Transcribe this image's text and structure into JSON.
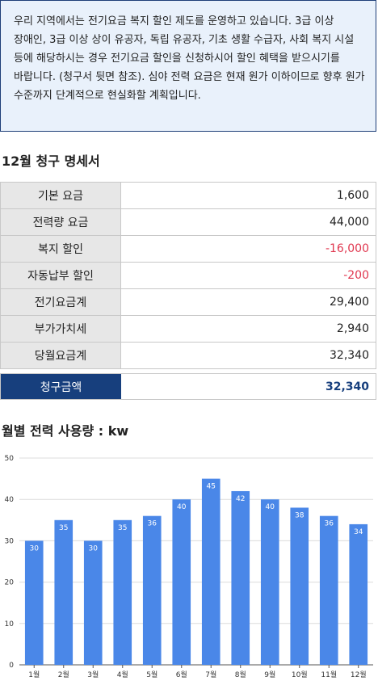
{
  "notice": {
    "text": "우리 지역에서는 전기요금 복지 할인 제도를 운영하고 있습니다. 3급 이상 장애인, 3급 이상 상이 유공자, 독립 유공자, 기초 생활 수급자, 사회 복지 시설 등에 해당하시는 경우 전기요금 할인을 신청하시어 할인 혜택을 받으시기를 바랍니다. (청구서 뒷면 참조). 심야 전력 요금은 현재 원가 이하이므로 향후 원가 수준까지 단계적으로 현실화할 계획입니다."
  },
  "bill": {
    "title": "12월 청구 명세서",
    "rows": [
      {
        "label": "기본 요금",
        "value": "1,600"
      },
      {
        "label": "전력량 요금",
        "value": "44,000"
      },
      {
        "label": "복지 할인",
        "value": "-16,000"
      },
      {
        "label": "자동납부 할인",
        "value": "-200"
      },
      {
        "label": "전기요금계",
        "value": "29,400"
      },
      {
        "label": "부가가치세",
        "value": "2,940"
      },
      {
        "label": "당월요금계",
        "value": "32,340"
      }
    ],
    "total_label": "청구금액",
    "total_value": "32,340",
    "colors": {
      "negative": "#e0374f",
      "total_bg": "#173f7d"
    }
  },
  "chart_data": {
    "type": "bar",
    "title": "월별 전력 사용량 : kw",
    "categories": [
      "1월",
      "2월",
      "3월",
      "4월",
      "5월",
      "6월",
      "7월",
      "8월",
      "9월",
      "10월",
      "11월",
      "12월"
    ],
    "values": [
      30,
      35,
      30,
      35,
      36,
      40,
      45,
      42,
      40,
      38,
      36,
      34
    ],
    "ylim": [
      0,
      50
    ],
    "yticks": [
      0,
      10,
      20,
      30,
      40,
      50
    ],
    "grid": true,
    "bar_color": "#4a87e8"
  }
}
